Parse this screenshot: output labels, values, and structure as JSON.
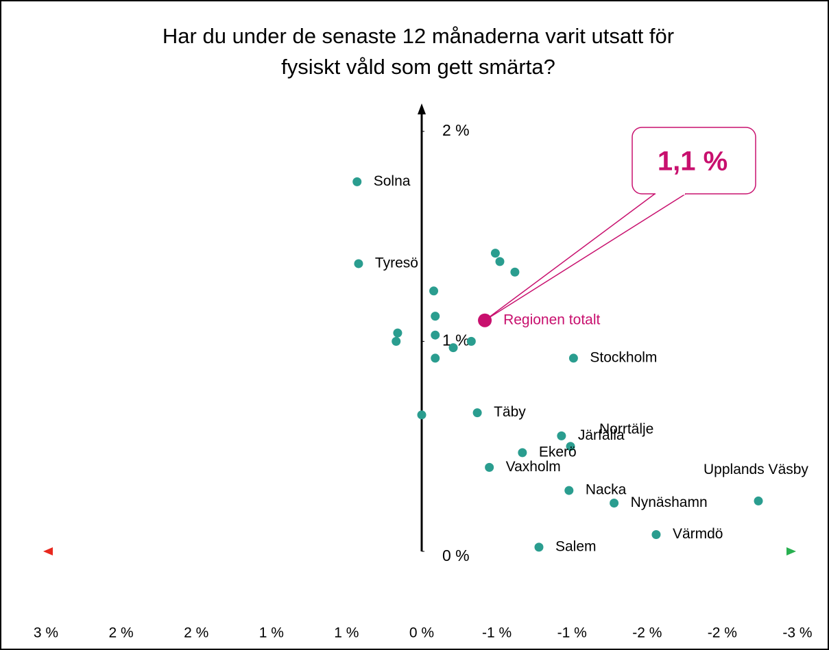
{
  "chart_data": {
    "type": "scatter",
    "title": "Har du under de senaste 12 månaderna varit utsatt för fysiskt våld som gett smärta?",
    "series": [
      {
        "color": "#2a9d8f",
        "labels": [
          "Solna",
          "Tyresö",
          null,
          null,
          null,
          null,
          null,
          null,
          null,
          null,
          null,
          null,
          null,
          "Stockholm",
          null,
          "Täby",
          "Järfälla",
          "Norrtälje",
          "Ekerö",
          "Vaxholm",
          "Nacka",
          "Nynäshamn",
          "Upplands Väsby",
          "Värmdö",
          "Salem"
        ],
        "x": [
          0.43,
          0.42,
          -0.49,
          -0.52,
          -0.62,
          -0.08,
          -0.09,
          0.16,
          0.17,
          -0.09,
          -0.21,
          -0.33,
          -0.09,
          -1.01,
          0.0,
          -0.37,
          -0.93,
          -0.99,
          -0.67,
          -0.45,
          -0.98,
          -1.28,
          -2.24,
          -1.56,
          -0.78
        ],
        "values": [
          1.76,
          1.37,
          1.42,
          1.38,
          1.33,
          1.24,
          1.12,
          1.04,
          1.0,
          1.03,
          0.97,
          1.0,
          0.92,
          0.92,
          0.65,
          0.66,
          0.55,
          0.5,
          0.47,
          0.4,
          0.29,
          0.23,
          0.24,
          0.08,
          0.02
        ]
      },
      {
        "name": "Regionen totalt",
        "color": "#c8106e",
        "x": [
          -0.42
        ],
        "values": [
          1.1
        ],
        "value_labels": [
          "1,1 %"
        ]
      }
    ],
    "xlim": [
      2.5,
      -2.5
    ],
    "xticks": [
      {
        "value": 2.5,
        "label": "3 %"
      },
      {
        "value": 2.0,
        "label": "2 %"
      },
      {
        "value": 1.5,
        "label": "2 %"
      },
      {
        "value": 1.0,
        "label": "1 %"
      },
      {
        "value": 0.5,
        "label": "1 %"
      },
      {
        "value": 0,
        "label": "0 %"
      },
      {
        "value": -0.5,
        "label": "-1 %"
      },
      {
        "value": -1.0,
        "label": "-1 %"
      },
      {
        "value": -1.5,
        "label": "-2 %"
      },
      {
        "value": -2.0,
        "label": "-2 %"
      },
      {
        "value": -2.5,
        "label": "-3 %"
      }
    ],
    "ylim": [
      0,
      2.12
    ],
    "yticks": [
      {
        "value": 0,
        "label": "0 %"
      },
      {
        "value": 1,
        "label": "1 %"
      },
      {
        "value": 2,
        "label": "2 %"
      }
    ]
  }
}
